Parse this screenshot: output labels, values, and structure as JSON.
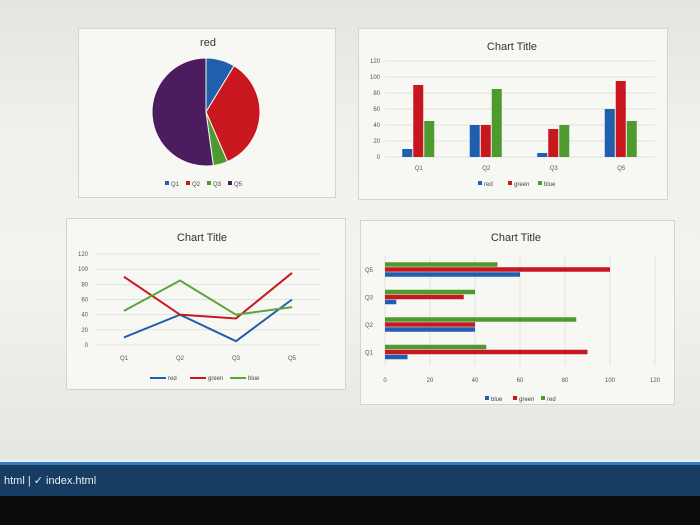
{
  "statusbar": {
    "text": "html | ✓ index.html"
  },
  "colors": {
    "red": "#c8171e",
    "green": "#4f9a2f",
    "blue": "#1f5fae",
    "purple": "#4b1c5e"
  },
  "chart_data": [
    {
      "type": "pie",
      "title": "red",
      "categories": [
        "Q1",
        "Q2",
        "Q3",
        "Q5"
      ],
      "values": [
        10,
        40,
        5,
        60
      ],
      "colors": [
        "#1f5fae",
        "#c8171e",
        "#4f9a2f",
        "#4b1c5e"
      ],
      "legend": "bottom"
    },
    {
      "type": "bar",
      "title": "Chart Title",
      "categories": [
        "Q1",
        "Q2",
        "Q3",
        "Q5"
      ],
      "ticks": [
        0,
        20,
        40,
        60,
        80,
        100,
        120
      ],
      "series": [
        {
          "name": "red",
          "values": [
            10,
            40,
            5,
            60
          ],
          "color": "#1f5fae"
        },
        {
          "name": "green",
          "values": [
            90,
            40,
            35,
            95
          ],
          "color": "#c8171e"
        },
        {
          "name": "blue",
          "values": [
            45,
            85,
            40,
            45
          ],
          "color": "#4f9a2f"
        }
      ],
      "ylim": [
        0,
        120
      ],
      "legend": "bottom"
    },
    {
      "type": "line",
      "title": "Chart Title",
      "categories": [
        "Q1",
        "Q2",
        "Q3",
        "Q5"
      ],
      "ticks": [
        0,
        20,
        40,
        60,
        80,
        100,
        120
      ],
      "series": [
        {
          "name": "red",
          "values": [
            10,
            40,
            5,
            60
          ],
          "color": "#1f5fae"
        },
        {
          "name": "green",
          "values": [
            90,
            40,
            35,
            95
          ],
          "color": "#c8171e"
        },
        {
          "name": "blue",
          "values": [
            45,
            85,
            40,
            50
          ],
          "color": "#5aa63c"
        }
      ],
      "ylim": [
        0,
        120
      ],
      "legend": "bottom"
    },
    {
      "type": "bar",
      "orientation": "horizontal",
      "title": "Chart Title",
      "categories": [
        "Q1",
        "Q2",
        "Q3",
        "Q5"
      ],
      "ticks": [
        0,
        20,
        40,
        60,
        80,
        100,
        120
      ],
      "series": [
        {
          "name": "blue",
          "values": [
            10,
            40,
            5,
            60
          ],
          "color": "#1f5fae"
        },
        {
          "name": "green",
          "values": [
            90,
            40,
            35,
            100
          ],
          "color": "#c8171e"
        },
        {
          "name": "red",
          "values": [
            45,
            85,
            40,
            50
          ],
          "color": "#4f9a2f"
        }
      ],
      "xlim": [
        0,
        120
      ],
      "legend": "bottom"
    }
  ]
}
